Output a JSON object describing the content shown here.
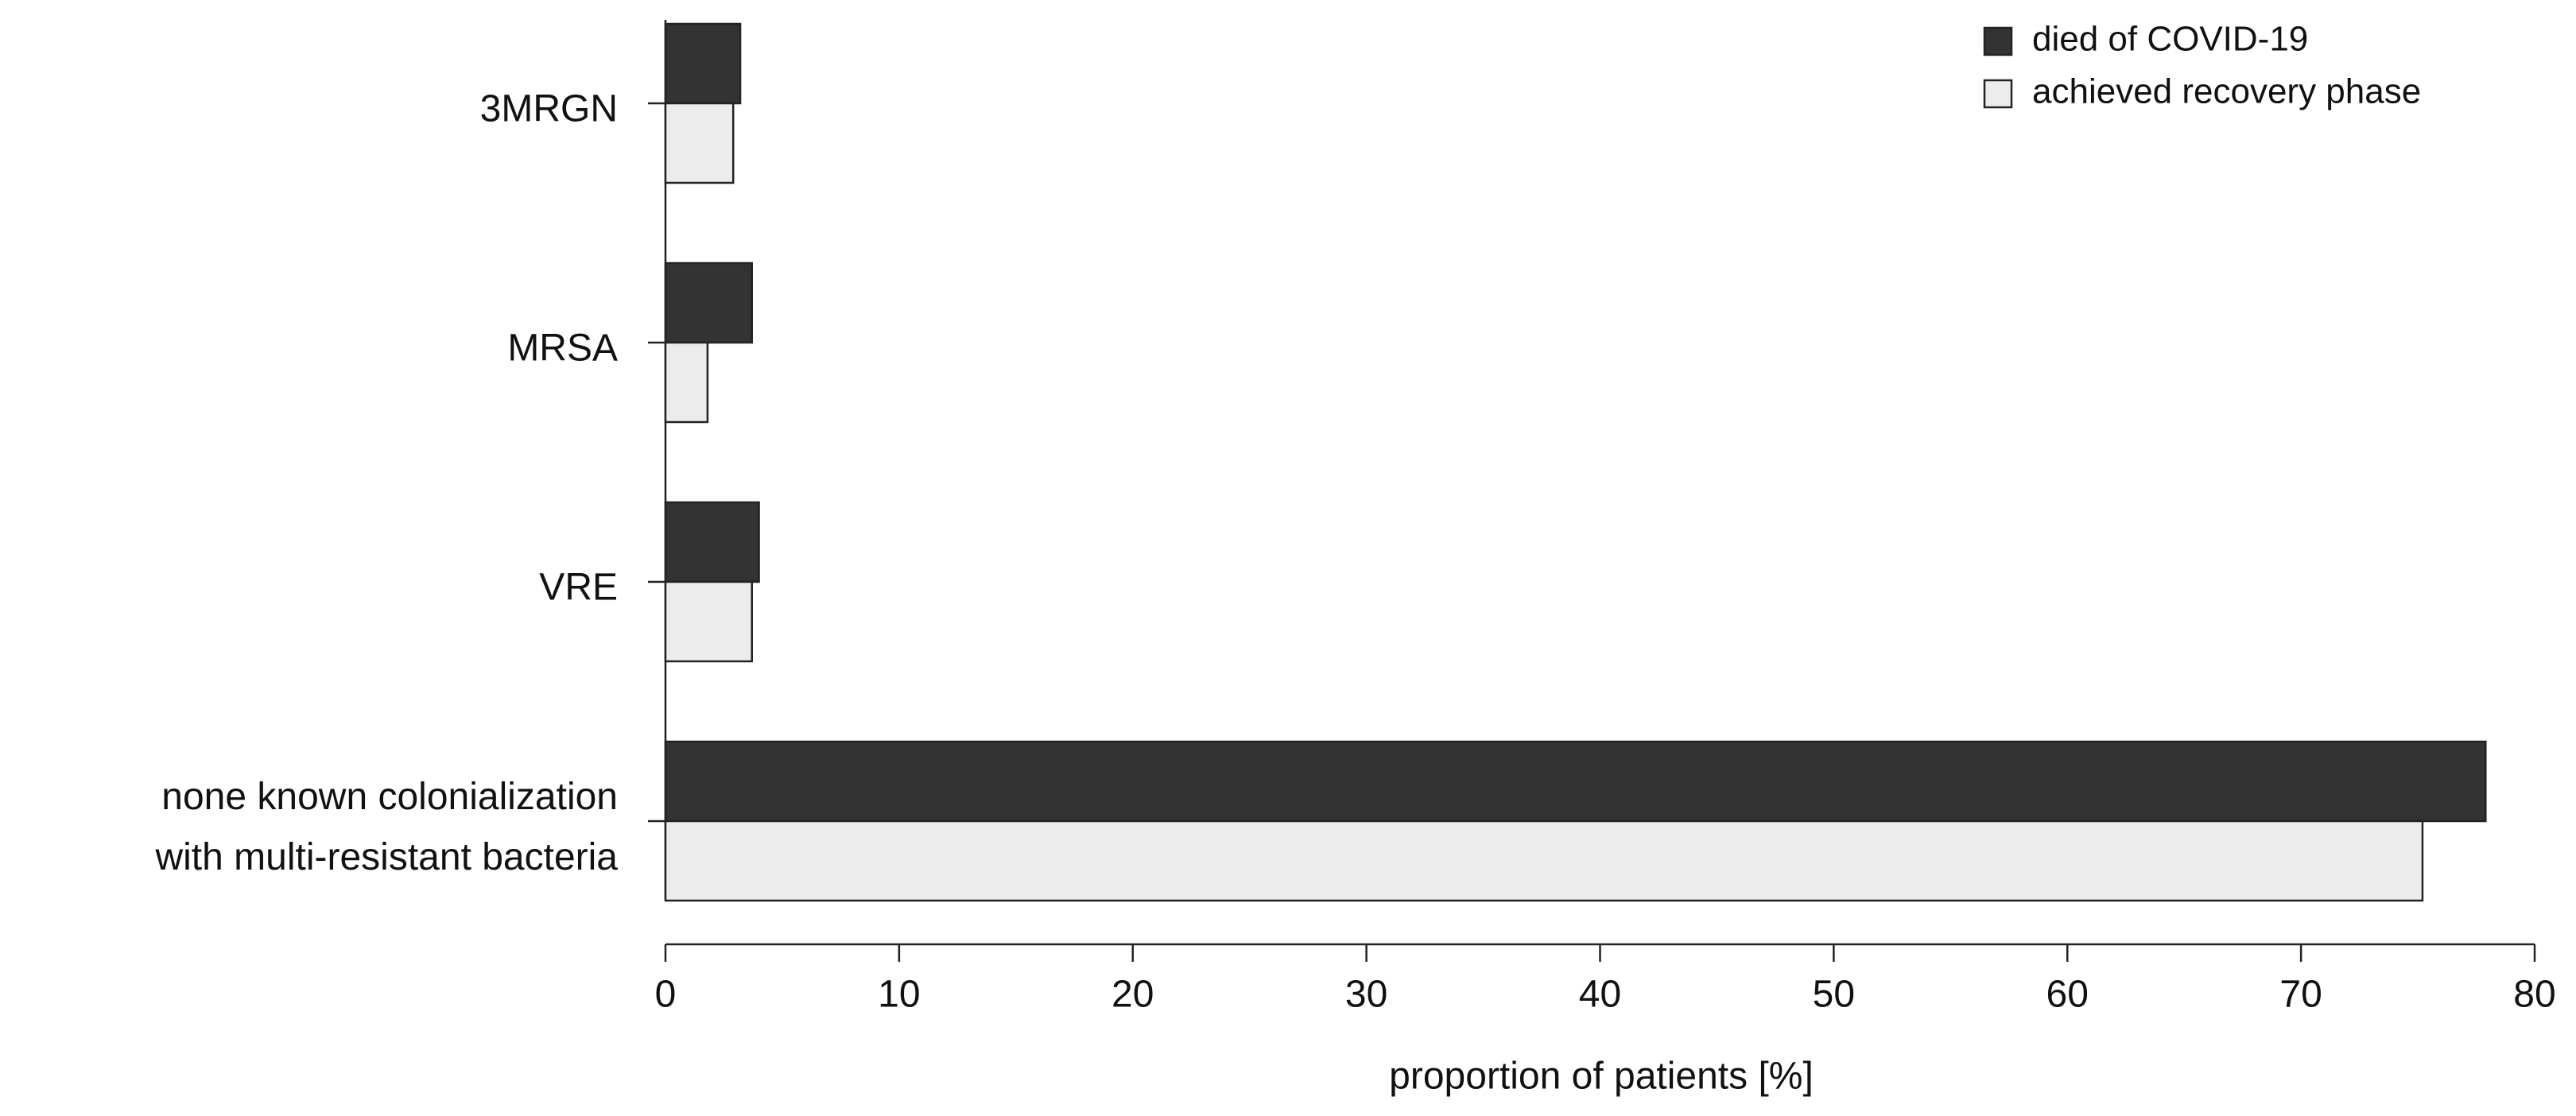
{
  "chart_data": {
    "type": "hbar",
    "xlabel": "proportion of patients [%]",
    "categories": [
      "3MRGN",
      "MRSA",
      "VRE",
      "none known colonialization\nwith multi-resistant bacteria"
    ],
    "series": [
      {
        "name": "died of COVID-19",
        "color": "#333333",
        "values": [
          3.2,
          3.7,
          4.0,
          77.9
        ]
      },
      {
        "name": "achieved recovery phase",
        "color": "#ececec",
        "values": [
          2.9,
          1.8,
          3.7,
          75.2
        ]
      }
    ],
    "xlim": [
      0,
      80
    ],
    "xticks": [
      0,
      10,
      20,
      30,
      40,
      50,
      60,
      70,
      80
    ],
    "legend": "top-right"
  }
}
